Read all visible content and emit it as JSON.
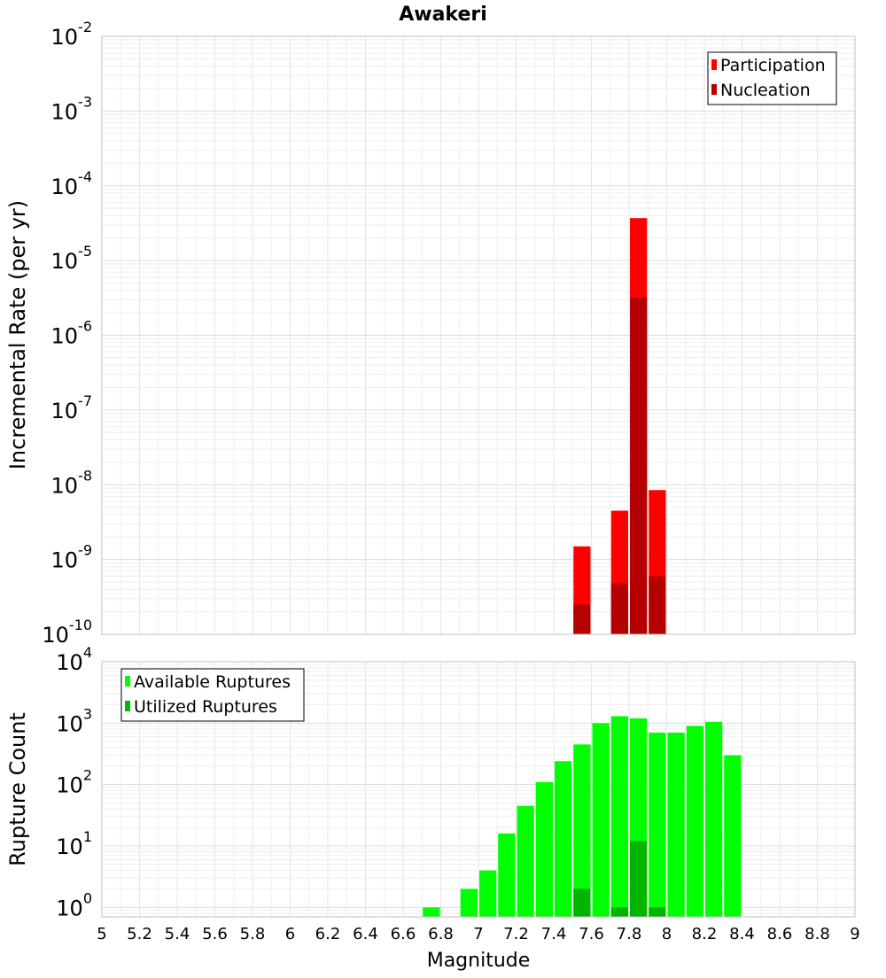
{
  "title": "Awakeri",
  "chart_data": [
    {
      "type": "bar",
      "panel": "top",
      "ylabel": "Incremental Rate (per yr)",
      "xlabel": "",
      "yscale": "log",
      "ylim": [
        1e-10,
        0.01
      ],
      "xlim": [
        5,
        9
      ],
      "bin_width": 0.1,
      "grid": true,
      "legend_position": "top-right",
      "yticks": [
        {
          "base": "10",
          "exp": "-2",
          "value": 0.01
        },
        {
          "base": "10",
          "exp": "-3",
          "value": 0.001
        },
        {
          "base": "10",
          "exp": "-4",
          "value": 0.0001
        },
        {
          "base": "10",
          "exp": "-5",
          "value": 1e-05
        },
        {
          "base": "10",
          "exp": "-6",
          "value": 1e-06
        },
        {
          "base": "10",
          "exp": "-7",
          "value": 1e-07
        },
        {
          "base": "10",
          "exp": "-8",
          "value": 1e-08
        },
        {
          "base": "10",
          "exp": "-9",
          "value": 1e-09
        },
        {
          "base": "10",
          "exp": "-10",
          "value": 1e-10
        }
      ],
      "series": [
        {
          "name": "Participation",
          "color": "#ff0000",
          "x": [
            7.55,
            7.75,
            7.85,
            7.95
          ],
          "values": [
            1.5e-09,
            4.5e-09,
            3.7e-05,
            8.5e-09
          ]
        },
        {
          "name": "Nucleation",
          "color": "#b40000",
          "x": [
            7.55,
            7.75,
            7.85,
            7.95
          ],
          "values": [
            2.5e-10,
            4.8e-10,
            3.2e-06,
            6e-10
          ]
        }
      ]
    },
    {
      "type": "bar",
      "panel": "bottom",
      "ylabel": "Rupture Count",
      "xlabel": "Magnitude",
      "yscale": "log",
      "ylim": [
        0.7,
        10000
      ],
      "xlim": [
        5,
        9
      ],
      "bin_width": 0.1,
      "grid": true,
      "legend_position": "top-left",
      "yticks": [
        {
          "base": "10",
          "exp": "4",
          "value": 10000
        },
        {
          "base": "10",
          "exp": "3",
          "value": 1000
        },
        {
          "base": "10",
          "exp": "2",
          "value": 100
        },
        {
          "base": "10",
          "exp": "1",
          "value": 10
        },
        {
          "base": "10",
          "exp": "0",
          "value": 1
        }
      ],
      "xticks": [
        "5",
        "5.2",
        "5.4",
        "5.6",
        "5.8",
        "6",
        "6.2",
        "6.4",
        "6.6",
        "6.8",
        "7",
        "7.2",
        "7.4",
        "7.6",
        "7.8",
        "8",
        "8.2",
        "8.4",
        "8.6",
        "8.8",
        "9"
      ],
      "series": [
        {
          "name": "Available Ruptures",
          "color": "#00ff00",
          "x": [
            6.75,
            6.95,
            7.05,
            7.15,
            7.25,
            7.35,
            7.45,
            7.55,
            7.65,
            7.75,
            7.85,
            7.95,
            8.05,
            8.15,
            8.25,
            8.35
          ],
          "values": [
            1,
            2,
            4,
            16,
            45,
            110,
            240,
            450,
            1000,
            1300,
            1200,
            700,
            700,
            900,
            1050,
            300
          ]
        },
        {
          "name": "Utilized Ruptures",
          "color": "#00b400",
          "x": [
            7.55,
            7.75,
            7.85,
            7.95
          ],
          "values": [
            2,
            1,
            12,
            1
          ]
        }
      ]
    }
  ]
}
